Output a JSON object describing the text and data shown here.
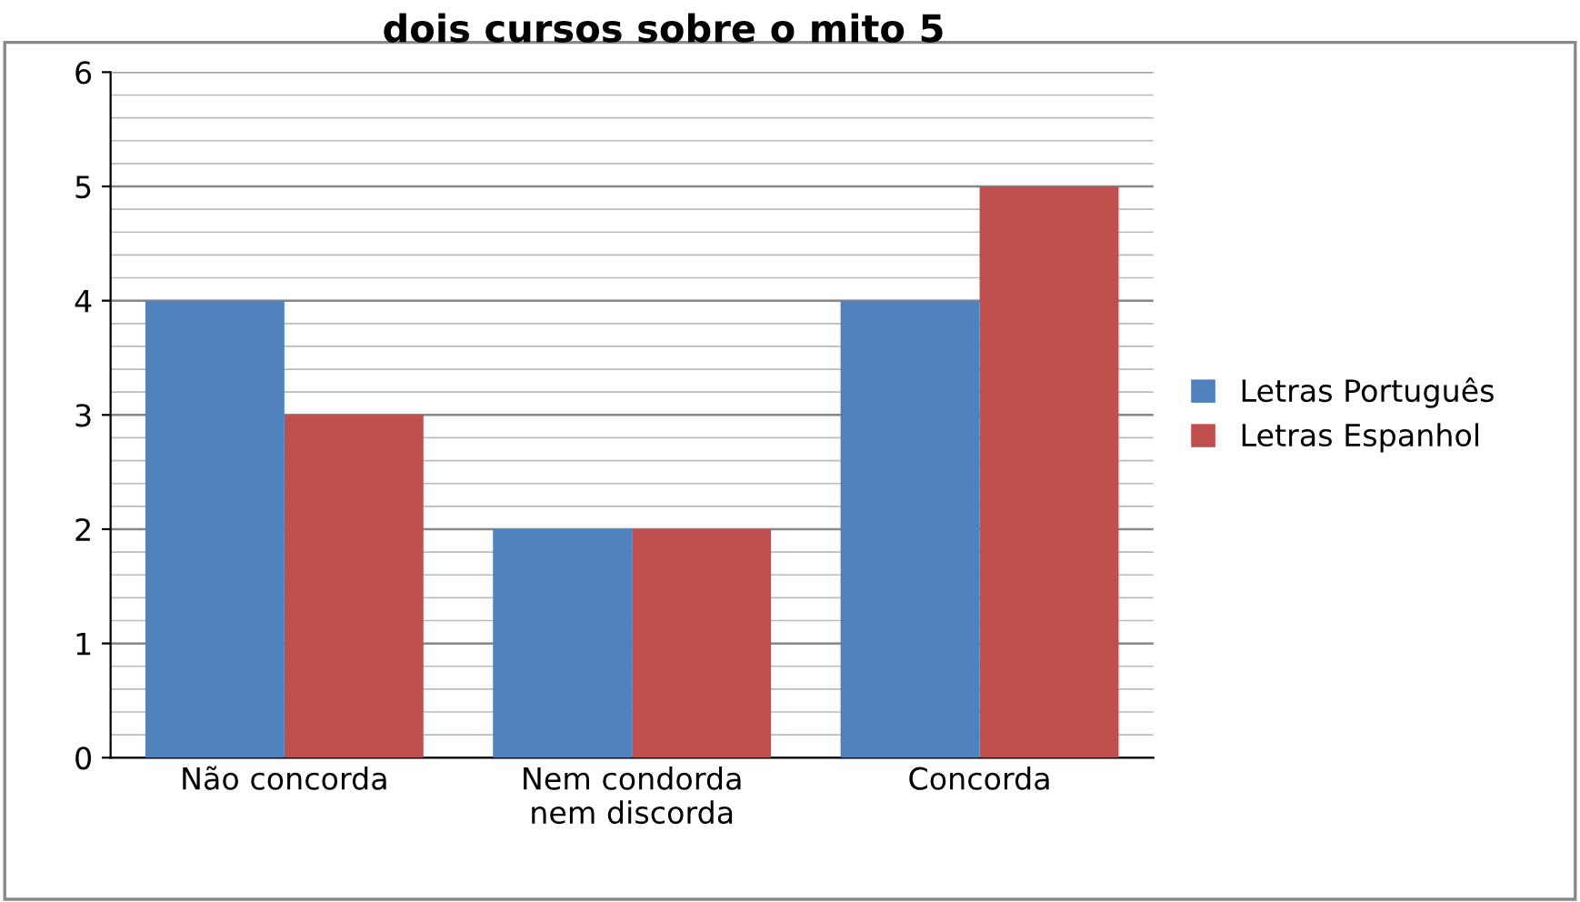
{
  "chart_data": {
    "type": "bar",
    "title": "dois cursos sobre o mito 5",
    "categories": [
      "Não concorda",
      "Nem condorda\nnem discorda",
      "Concorda"
    ],
    "series": [
      {
        "name": "Letras Português",
        "color": "#4f81bd",
        "values": [
          4,
          2,
          4
        ]
      },
      {
        "name": "Letras Espanhol",
        "color": "#c0504d",
        "values": [
          3,
          2,
          5
        ]
      }
    ],
    "ylim": [
      0,
      6
    ],
    "yticks": [
      0,
      1,
      2,
      3,
      4,
      5,
      6
    ],
    "grid": "y",
    "legend": "right"
  }
}
